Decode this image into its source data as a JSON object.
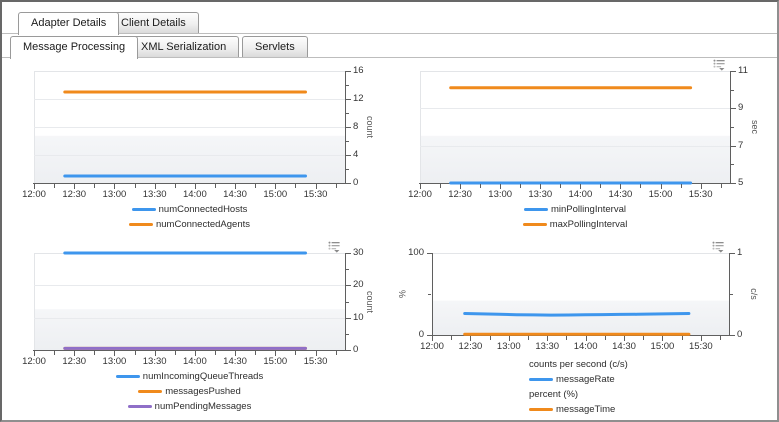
{
  "tabs": {
    "row1": [
      {
        "label": "Adapter Details",
        "active": true
      },
      {
        "label": "Client Details",
        "active": false
      }
    ],
    "row2": [
      {
        "label": "Message Processing",
        "active": true
      },
      {
        "label": "XML Serialization",
        "active": false
      },
      {
        "label": "Servlets",
        "active": false
      }
    ]
  },
  "colors": {
    "series_blue": "#3e96ed",
    "series_orange": "#f08a1c",
    "series_purple": "#8f6fc8",
    "axis": "#5f5f5f"
  },
  "chart_data": [
    {
      "type": "line",
      "title": "",
      "x": {
        "labels": [
          "12:00",
          "12:30",
          "13:00",
          "13:30",
          "14:00",
          "14:30",
          "15:00",
          "15:30"
        ],
        "total_minutes": 232,
        "major_minutes": 30,
        "minor_minutes": 15
      },
      "y_axes": [
        {
          "side": "right",
          "label": "count",
          "min": 0,
          "max": 16,
          "majors": [
            0,
            4,
            8,
            12,
            16
          ],
          "minors": [
            2,
            6,
            10,
            14
          ],
          "grid": [
            4,
            8,
            12
          ]
        }
      ],
      "series": [
        {
          "name": "numConnectedHosts",
          "color": "#3e96ed",
          "axis": 0,
          "values": [
            1,
            1
          ]
        },
        {
          "name": "numConnectedAgents",
          "color": "#f08a1c",
          "axis": 0,
          "values": [
            13,
            13
          ]
        }
      ],
      "t_range": [
        0.099,
        0.873
      ],
      "legend": [
        {
          "label": "numConnectedHosts",
          "color": "#3e96ed"
        },
        {
          "label": "numConnectedAgents",
          "color": "#f08a1c"
        }
      ],
      "menu_icon": false
    },
    {
      "type": "line",
      "title": "",
      "x": {
        "labels": [
          "12:00",
          "12:30",
          "13:00",
          "13:30",
          "14:00",
          "14:30",
          "15:00",
          "15:30"
        ],
        "total_minutes": 232,
        "major_minutes": 30,
        "minor_minutes": 15
      },
      "y_axes": [
        {
          "side": "right",
          "label": "sec",
          "min": 5,
          "max": 11,
          "majors": [
            5,
            7,
            9,
            11
          ],
          "minors": [
            6,
            8,
            10
          ],
          "grid": [
            7,
            9
          ]
        }
      ],
      "series": [
        {
          "name": "minPollingInterval",
          "color": "#3e96ed",
          "axis": 0,
          "values": [
            5,
            5
          ]
        },
        {
          "name": "maxPollingInterval",
          "color": "#f08a1c",
          "axis": 0,
          "values": [
            10.1,
            10.1
          ]
        }
      ],
      "t_range": [
        0.099,
        0.873
      ],
      "legend": [
        {
          "label": "minPollingInterval",
          "color": "#3e96ed"
        },
        {
          "label": "maxPollingInterval",
          "color": "#f08a1c"
        }
      ],
      "menu_icon": true
    },
    {
      "type": "line",
      "title": "",
      "x": {
        "labels": [
          "12:00",
          "12:30",
          "13:00",
          "13:30",
          "14:00",
          "14:30",
          "15:00",
          "15:30"
        ],
        "total_minutes": 232,
        "major_minutes": 30,
        "minor_minutes": 15
      },
      "y_axes": [
        {
          "side": "right",
          "label": "count",
          "min": 0,
          "max": 30,
          "majors": [
            0,
            10,
            20,
            30
          ],
          "minors": [
            5,
            15,
            25
          ],
          "grid": [
            10,
            20
          ]
        }
      ],
      "series": [
        {
          "name": "numIncomingQueueThreads",
          "color": "#3e96ed",
          "axis": 0,
          "values": [
            30,
            30
          ]
        },
        {
          "name": "messagesPushed",
          "color": "#f08a1c",
          "axis": 0,
          "values": [
            0.5,
            0.5
          ]
        },
        {
          "name": "numPendingMessages",
          "color": "#8f6fc8",
          "axis": 0,
          "values": [
            0.5,
            0.5
          ]
        }
      ],
      "t_range": [
        0.099,
        0.873
      ],
      "legend": [
        {
          "label": "numIncomingQueueThreads",
          "color": "#3e96ed"
        },
        {
          "label": "messagesPushed",
          "color": "#f08a1c"
        },
        {
          "label": "numPendingMessages",
          "color": "#8f6fc8"
        }
      ],
      "menu_icon": true
    },
    {
      "type": "line",
      "title": "",
      "x": {
        "labels": [
          "12:00",
          "12:30",
          "13:00",
          "13:30",
          "14:00",
          "14:30",
          "15:00",
          "15:30"
        ],
        "total_minutes": 232,
        "major_minutes": 30,
        "minor_minutes": 15
      },
      "y_axes": [
        {
          "side": "left",
          "label": "%",
          "min": 0,
          "max": 100,
          "majors": [
            0,
            100
          ],
          "minors": [
            50
          ],
          "grid": []
        },
        {
          "side": "right",
          "label": "c/s",
          "min": 0,
          "max": 1,
          "majors": [
            0,
            1
          ],
          "minors": [
            0.5
          ],
          "grid": []
        }
      ],
      "series": [
        {
          "name": "messageTime",
          "color": "#f08a1c",
          "axis": 0,
          "values": [
            1,
            1
          ]
        },
        {
          "name": "messageRate",
          "color": "#3e96ed",
          "axis": 1,
          "values": [
            0.262,
            0.257,
            0.252,
            0.248,
            0.245,
            0.243,
            0.244,
            0.247,
            0.249,
            0.251,
            0.253,
            0.256,
            0.259,
            0.262
          ]
        }
      ],
      "t_range": [
        0.11,
        0.865
      ],
      "legend": [
        {
          "header": "counts per second (c/s)"
        },
        {
          "label": "messageRate",
          "color": "#3e96ed"
        },
        {
          "header": "percent (%)"
        },
        {
          "label": "messageTime",
          "color": "#f08a1c"
        }
      ],
      "menu_icon": true
    }
  ]
}
